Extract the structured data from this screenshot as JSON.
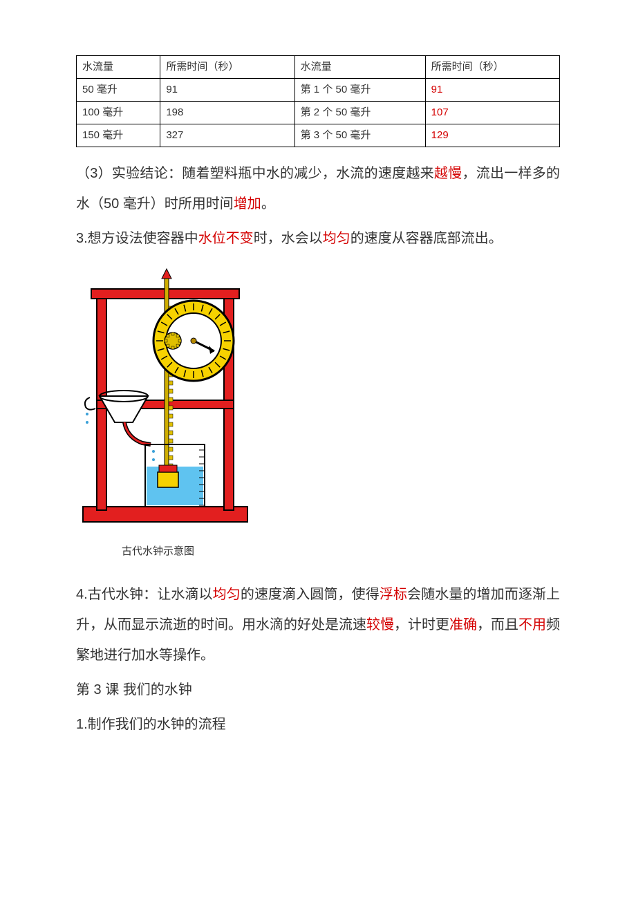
{
  "table": {
    "headers": [
      "水流量",
      "所需时间（秒）",
      "水流量",
      "所需时间（秒）"
    ],
    "rows": [
      [
        "50 毫升",
        "91",
        "第 1 个 50 毫升",
        "91"
      ],
      [
        "100 毫升",
        "198",
        "第 2 个 50 毫升",
        "107"
      ],
      [
        "150 毫升",
        "327",
        "第 3 个 50 毫升",
        "129"
      ]
    ],
    "red_cells": [
      [
        0,
        3
      ],
      [
        1,
        3
      ],
      [
        2,
        3
      ]
    ]
  },
  "para3": {
    "prefix": "（3）实验结论：随着塑料瓶中水的减少，水流的速度越来",
    "hl1": "越慢",
    "mid1": "，流出一样多的水（50 毫升）时所用时间",
    "hl2": "增加",
    "suffix": "。"
  },
  "line3": {
    "prefix": "3.想方设法使容器中",
    "hl1": "水位不变",
    "mid1": "时，水会以",
    "hl2": "均匀",
    "suffix": "的速度从容器底部流出。"
  },
  "caption": "古代水钟示意图",
  "para4": {
    "prefix": "4.古代水钟：让水滴以",
    "hl1": "均匀",
    "mid1": "的速度滴入圆筒，使得",
    "hl2": "浮标",
    "mid2": "会随水量的增加而逐渐上升，从而显示流逝的时间。用水滴的好处是流速",
    "hl3": "较慢",
    "mid3": "，计时更",
    "hl4": "准确",
    "mid4": "，而且",
    "hl5": "不用",
    "suffix": "频繁地进行加水等操作。"
  },
  "section3": {
    "title": "第 3 课  我们的水钟",
    "line1": "1.制作我们的水钟的流程"
  },
  "diagram": {
    "frame_color": "#e21f1f",
    "dial_outer": "#f7d200",
    "dial_face": "#ffffff",
    "center_color": "#b88a00",
    "gear_rack_color": "#e0c000",
    "funnel_fill": "#ffffff",
    "funnel_stroke": "#000000",
    "beaker_fill": "#5fc3f0",
    "beaker_stroke": "#000000",
    "float_fill": "#f7d200",
    "water_drop": "#3aa0d8",
    "arrow_color": "#000000"
  }
}
